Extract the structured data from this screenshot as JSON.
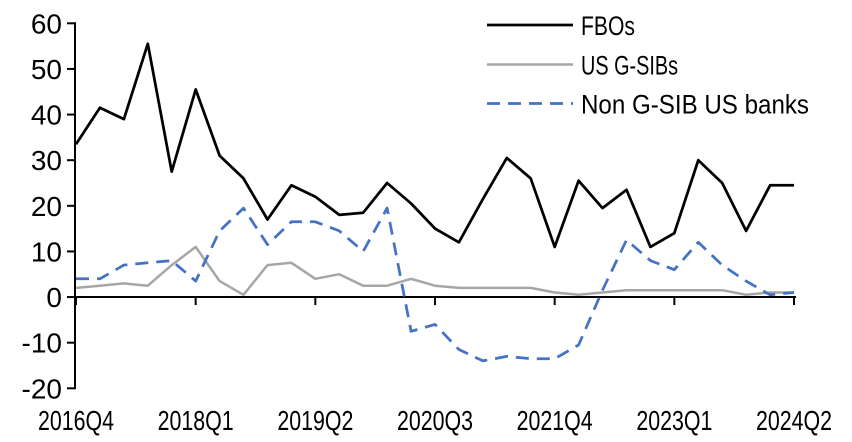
{
  "chart_data": {
    "type": "line",
    "title": "",
    "x_count": 31,
    "x_start": "2016Q4",
    "x_end": "2024Q2",
    "xtick_labels": [
      {
        "pos": 0,
        "label": "2016Q4"
      },
      {
        "pos": 5,
        "label": "2018Q1"
      },
      {
        "pos": 10,
        "label": "2019Q2"
      },
      {
        "pos": 15,
        "label": "2020Q3"
      },
      {
        "pos": 20,
        "label": "2021Q4"
      },
      {
        "pos": 25,
        "label": "2023Q1"
      },
      {
        "pos": 30,
        "label": "2024Q2"
      }
    ],
    "ylim": [
      -20,
      60
    ],
    "ytick_values": [
      60,
      50,
      40,
      30,
      20,
      10,
      0,
      -10,
      -20
    ],
    "grid": false,
    "legend_position": "top-right",
    "series": [
      {
        "name": "FBOs",
        "color": "#000000",
        "style": "solid",
        "values": [
          33.5,
          41.5,
          39,
          55.5,
          27.5,
          45.5,
          31,
          26,
          17,
          24.5,
          22,
          18,
          18.5,
          25,
          20.5,
          15,
          12,
          21.5,
          30.5,
          26,
          11,
          25.5,
          19.5,
          23.5,
          11,
          14,
          30,
          25,
          14.5,
          24.5,
          24.5
        ]
      },
      {
        "name": "US G-SIBs",
        "color": "#A6A6A6",
        "style": "solid",
        "values": [
          2,
          2.5,
          3,
          2.5,
          7,
          11,
          3.5,
          0.5,
          7,
          7.5,
          4,
          5,
          2.5,
          2.5,
          4,
          2.5,
          2,
          2,
          2,
          2,
          1,
          0.5,
          1,
          1.5,
          1.5,
          1.5,
          1.5,
          1.5,
          0.5,
          1,
          1
        ]
      },
      {
        "name": "Non G-SIB US banks",
        "color": "#4472C4",
        "style": "dashed",
        "values": [
          4,
          4,
          7,
          7.5,
          8,
          3.5,
          14.5,
          19.5,
          11.5,
          16.5,
          16.5,
          14.5,
          10,
          19.5,
          -7.5,
          -6,
          -11.5,
          -14,
          -13,
          -13.5,
          -13.5,
          -10.5,
          1.5,
          12.5,
          8,
          6,
          12,
          7,
          3.5,
          0.5,
          1
        ]
      }
    ]
  }
}
